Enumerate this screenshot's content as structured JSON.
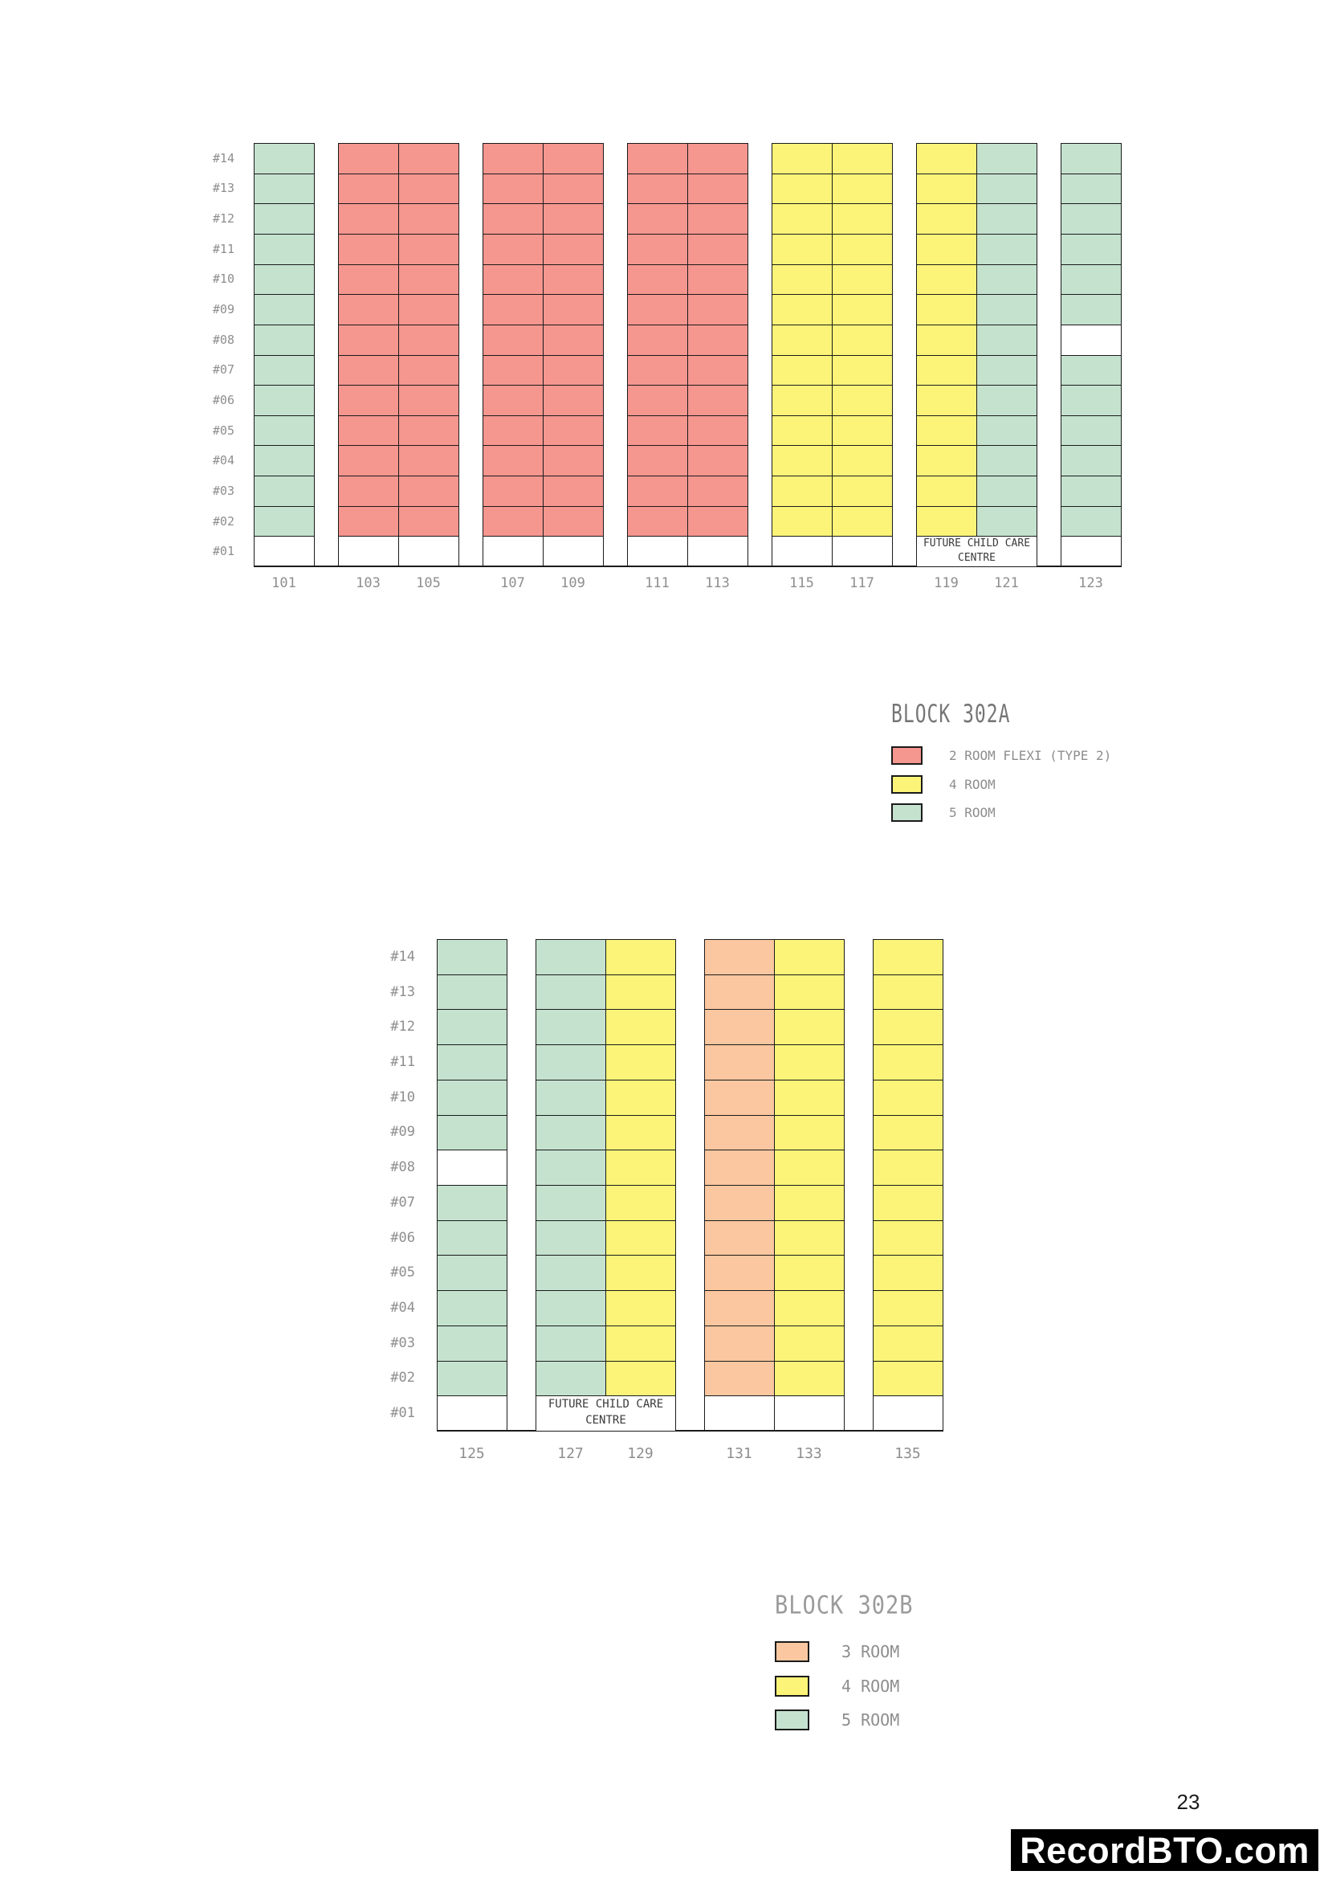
{
  "page": {
    "number": "23",
    "watermark": "RecordBTO.com",
    "background": "#ffffff"
  },
  "palette": {
    "2-room-flexi": "#F5968F",
    "3-room": "#FAC7A0",
    "4-room": "#FBF478",
    "5-room": "#C5E2CF",
    "empty": "#FFFFFF",
    "grid_line": "#1B1B1B"
  },
  "blocks": [
    {
      "name": "302A",
      "floors": [
        "#14",
        "#13",
        "#12",
        "#11",
        "#10",
        "#09",
        "#08",
        "#07",
        "#06",
        "#05",
        "#04",
        "#03",
        "#02",
        "#01"
      ],
      "unit_groups": [
        [
          {
            "unit": "101",
            "type": "5-room"
          }
        ],
        [
          {
            "unit": "103",
            "type": "2-room-flexi"
          },
          {
            "unit": "105",
            "type": "2-room-flexi"
          }
        ],
        [
          {
            "unit": "107",
            "type": "2-room-flexi"
          },
          {
            "unit": "109",
            "type": "2-room-flexi"
          }
        ],
        [
          {
            "unit": "111",
            "type": "2-room-flexi"
          },
          {
            "unit": "113",
            "type": "2-room-flexi"
          }
        ],
        [
          {
            "unit": "115",
            "type": "4-room"
          },
          {
            "unit": "117",
            "type": "4-room"
          }
        ],
        [
          {
            "unit": "119",
            "type": "4-room"
          },
          {
            "unit": "121",
            "type": "5-room"
          }
        ],
        [
          {
            "unit": "123",
            "type": "5-room",
            "empty_floors": [
              "#08"
            ]
          }
        ]
      ],
      "ground_floor_note": {
        "text": "FUTURE CHILD CARE CENTRE",
        "from_unit": "119",
        "to_unit": "121"
      },
      "legend": {
        "title": "BLOCK 302A",
        "items": [
          {
            "type": "2-room-flexi",
            "label": "2 ROOM FLEXI (TYPE 2)"
          },
          {
            "type": "4-room",
            "label": "4 ROOM"
          },
          {
            "type": "5-room",
            "label": "5 ROOM"
          }
        ]
      }
    },
    {
      "name": "302B",
      "floors": [
        "#14",
        "#13",
        "#12",
        "#11",
        "#10",
        "#09",
        "#08",
        "#07",
        "#06",
        "#05",
        "#04",
        "#03",
        "#02",
        "#01"
      ],
      "unit_groups": [
        [
          {
            "unit": "125",
            "type": "5-room",
            "empty_floors": [
              "#08"
            ]
          }
        ],
        [
          {
            "unit": "127",
            "type": "5-room"
          },
          {
            "unit": "129",
            "type": "4-room"
          }
        ],
        [
          {
            "unit": "131",
            "type": "3-room"
          },
          {
            "unit": "133",
            "type": "4-room"
          }
        ],
        [
          {
            "unit": "135",
            "type": "4-room"
          }
        ]
      ],
      "ground_floor_note": {
        "text": "FUTURE CHILD CARE CENTRE",
        "from_unit": "127",
        "to_unit": "129"
      },
      "legend": {
        "title": "BLOCK 302B",
        "items": [
          {
            "type": "3-room",
            "label": "3 ROOM"
          },
          {
            "type": "4-room",
            "label": "4 ROOM"
          },
          {
            "type": "5-room",
            "label": "5 ROOM"
          }
        ]
      }
    }
  ]
}
